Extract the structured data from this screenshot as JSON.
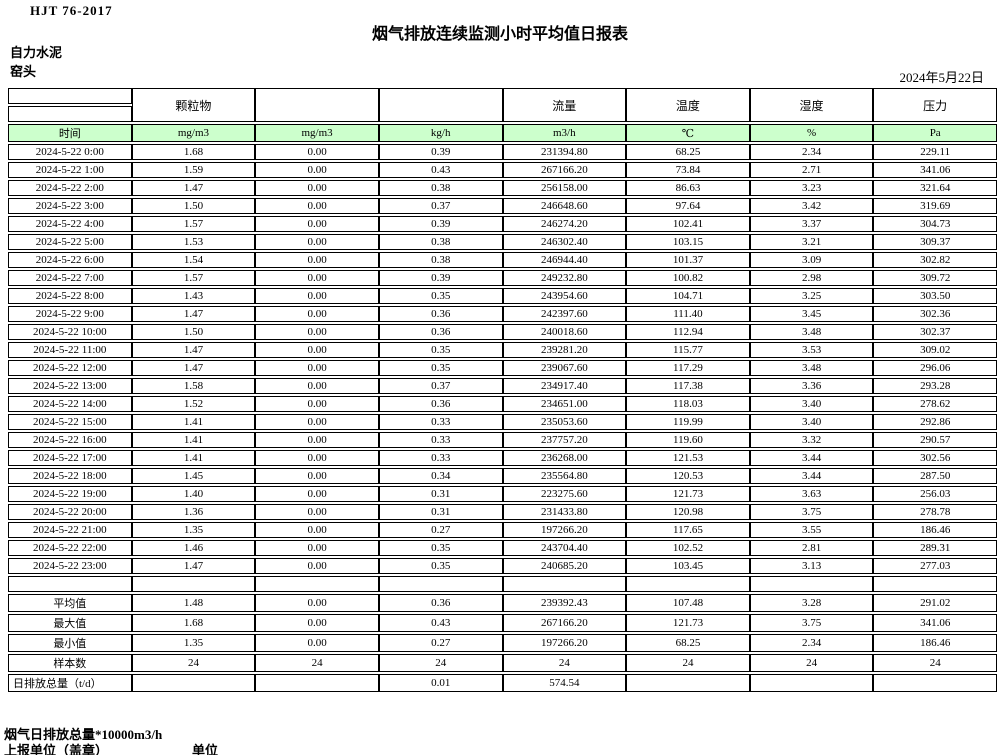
{
  "header": {
    "doc_code": "HJT 76-2017",
    "title": "烟气排放连续监测小时平均值日报表",
    "company": "自力水泥",
    "location": "窑头",
    "date": "2024年5月22日"
  },
  "table": {
    "group_headers": [
      "",
      "颗粒物",
      "",
      "",
      "流量",
      "温度",
      "湿度",
      "压力"
    ],
    "unit_row": [
      "时间",
      "mg/m3",
      "mg/m3",
      "kg/h",
      "m3/h",
      "℃",
      "%",
      "Pa"
    ],
    "rows": [
      [
        "2024-5-22 0:00",
        "1.68",
        "0.00",
        "0.39",
        "231394.80",
        "68.25",
        "2.34",
        "229.11"
      ],
      [
        "2024-5-22 1:00",
        "1.59",
        "0.00",
        "0.43",
        "267166.20",
        "73.84",
        "2.71",
        "341.06"
      ],
      [
        "2024-5-22 2:00",
        "1.47",
        "0.00",
        "0.38",
        "256158.00",
        "86.63",
        "3.23",
        "321.64"
      ],
      [
        "2024-5-22 3:00",
        "1.50",
        "0.00",
        "0.37",
        "246648.60",
        "97.64",
        "3.42",
        "319.69"
      ],
      [
        "2024-5-22 4:00",
        "1.57",
        "0.00",
        "0.39",
        "246274.20",
        "102.41",
        "3.37",
        "304.73"
      ],
      [
        "2024-5-22 5:00",
        "1.53",
        "0.00",
        "0.38",
        "246302.40",
        "103.15",
        "3.21",
        "309.37"
      ],
      [
        "2024-5-22 6:00",
        "1.54",
        "0.00",
        "0.38",
        "246944.40",
        "101.37",
        "3.09",
        "302.82"
      ],
      [
        "2024-5-22 7:00",
        "1.57",
        "0.00",
        "0.39",
        "249232.80",
        "100.82",
        "2.98",
        "309.72"
      ],
      [
        "2024-5-22 8:00",
        "1.43",
        "0.00",
        "0.35",
        "243954.60",
        "104.71",
        "3.25",
        "303.50"
      ],
      [
        "2024-5-22 9:00",
        "1.47",
        "0.00",
        "0.36",
        "242397.60",
        "111.40",
        "3.45",
        "302.36"
      ],
      [
        "2024-5-22 10:00",
        "1.50",
        "0.00",
        "0.36",
        "240018.60",
        "112.94",
        "3.48",
        "302.37"
      ],
      [
        "2024-5-22 11:00",
        "1.47",
        "0.00",
        "0.35",
        "239281.20",
        "115.77",
        "3.53",
        "309.02"
      ],
      [
        "2024-5-22 12:00",
        "1.47",
        "0.00",
        "0.35",
        "239067.60",
        "117.29",
        "3.48",
        "296.06"
      ],
      [
        "2024-5-22 13:00",
        "1.58",
        "0.00",
        "0.37",
        "234917.40",
        "117.38",
        "3.36",
        "293.28"
      ],
      [
        "2024-5-22 14:00",
        "1.52",
        "0.00",
        "0.36",
        "234651.00",
        "118.03",
        "3.40",
        "278.62"
      ],
      [
        "2024-5-22 15:00",
        "1.41",
        "0.00",
        "0.33",
        "235053.60",
        "119.99",
        "3.40",
        "292.86"
      ],
      [
        "2024-5-22 16:00",
        "1.41",
        "0.00",
        "0.33",
        "237757.20",
        "119.60",
        "3.32",
        "290.57"
      ],
      [
        "2024-5-22 17:00",
        "1.41",
        "0.00",
        "0.33",
        "236268.00",
        "121.53",
        "3.44",
        "302.56"
      ],
      [
        "2024-5-22 18:00",
        "1.45",
        "0.00",
        "0.34",
        "235564.80",
        "120.53",
        "3.44",
        "287.50"
      ],
      [
        "2024-5-22 19:00",
        "1.40",
        "0.00",
        "0.31",
        "223275.60",
        "121.73",
        "3.63",
        "256.03"
      ],
      [
        "2024-5-22 20:00",
        "1.36",
        "0.00",
        "0.31",
        "231433.80",
        "120.98",
        "3.75",
        "278.78"
      ],
      [
        "2024-5-22 21:00",
        "1.35",
        "0.00",
        "0.27",
        "197266.20",
        "117.65",
        "3.55",
        "186.46"
      ],
      [
        "2024-5-22 22:00",
        "1.46",
        "0.00",
        "0.35",
        "243704.40",
        "102.52",
        "2.81",
        "289.31"
      ],
      [
        "2024-5-22 23:00",
        "1.47",
        "0.00",
        "0.35",
        "240685.20",
        "103.45",
        "3.13",
        "277.03"
      ]
    ],
    "summary_rows": [
      [
        "平均值",
        "1.48",
        "0.00",
        "0.36",
        "239392.43",
        "107.48",
        "3.28",
        "291.02"
      ],
      [
        "最大值",
        "1.68",
        "0.00",
        "0.43",
        "267166.20",
        "121.73",
        "3.75",
        "341.06"
      ],
      [
        "最小值",
        "1.35",
        "0.00",
        "0.27",
        "197266.20",
        "68.25",
        "2.34",
        "186.46"
      ],
      [
        "样本数",
        "24",
        "24",
        "24",
        "24",
        "24",
        "24",
        "24"
      ]
    ],
    "total_row": [
      "日排放总量（t/d）",
      "",
      "",
      "0.01",
      "574.54",
      "",
      "",
      ""
    ]
  },
  "footer": {
    "note": "烟气日排放总量*10000m3/h",
    "report_unit": "上报单位（盖章）",
    "unit_label": "单位"
  },
  "colors": {
    "header_green": "#ccffcc"
  }
}
